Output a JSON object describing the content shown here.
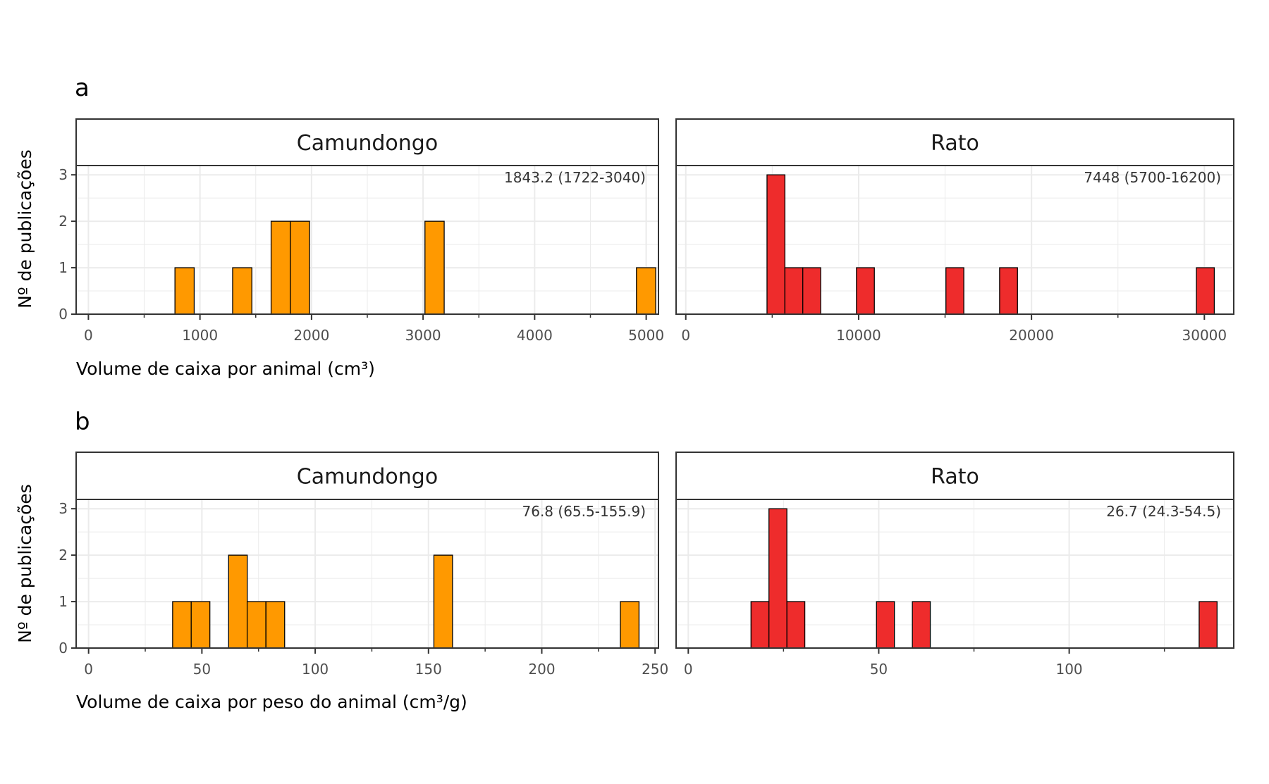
{
  "figure": {
    "panels": [
      {
        "letter": "a",
        "xlabel": "Volume de caixa por animal (cm³)",
        "ylabel": "Nº de publicações"
      },
      {
        "letter": "b",
        "xlabel": "Volume de caixa por peso do animal (cm³/g)",
        "ylabel": "Nº de publicações"
      }
    ],
    "colors": {
      "Camundongo": "#FF9900",
      "Rato": "#EE2C2C",
      "outline": "#000000",
      "grid": "#EBEBEB"
    }
  },
  "chart_data": [
    {
      "type": "bar",
      "panel": "a",
      "facet": "Camundongo",
      "annotation": "1843.2 (1722-3040)",
      "xlim": [
        -110,
        5110
      ],
      "ylim": [
        0,
        3.2
      ],
      "xticks": [
        0,
        1000,
        2000,
        3000,
        4000,
        5000
      ],
      "yticks": [
        0,
        1,
        2,
        3
      ],
      "binwidth": 172.4,
      "bins": [
        [
          862,
          1
        ],
        [
          1379,
          1
        ],
        [
          1724,
          2
        ],
        [
          1896,
          2
        ],
        [
          3103,
          2
        ],
        [
          4999,
          1
        ]
      ]
    },
    {
      "type": "bar",
      "panel": "a",
      "facet": "Rato",
      "annotation": "7448 (5700-16200)",
      "xlim": [
        -560,
        31700
      ],
      "ylim": [
        0,
        3.2
      ],
      "xticks": [
        0,
        10000,
        20000,
        30000
      ],
      "yticks": [
        0,
        1,
        2,
        3
      ],
      "binwidth": 1035,
      "bins": [
        [
          5217,
          3
        ],
        [
          6252,
          1
        ],
        [
          7287,
          1
        ],
        [
          10392,
          1
        ],
        [
          15567,
          1
        ],
        [
          18672,
          1
        ],
        [
          30057,
          1
        ]
      ]
    },
    {
      "type": "bar",
      "panel": "b",
      "facet": "Camundongo",
      "annotation": "76.8 (65.5-155.9)",
      "xlim": [
        -5.5,
        251.5
      ],
      "ylim": [
        0,
        3.2
      ],
      "xticks": [
        0,
        50,
        100,
        150,
        200,
        250
      ],
      "yticks": [
        0,
        1,
        2,
        3
      ],
      "binwidth": 8.235,
      "bins": [
        [
          41.2,
          1
        ],
        [
          49.4,
          1
        ],
        [
          65.9,
          2
        ],
        [
          74.1,
          1
        ],
        [
          82.4,
          1
        ],
        [
          156.5,
          2
        ],
        [
          238.8,
          1
        ]
      ]
    },
    {
      "type": "bar",
      "panel": "b",
      "facet": "Rato",
      "annotation": "26.7 (24.3-54.5)",
      "xlim": [
        -3.2,
        143.2
      ],
      "ylim": [
        0,
        3.2
      ],
      "xticks": [
        0,
        50,
        100
      ],
      "yticks": [
        0,
        1,
        2,
        3
      ],
      "binwidth": 4.706,
      "bins": [
        [
          18.82,
          1
        ],
        [
          23.53,
          3
        ],
        [
          28.24,
          1
        ],
        [
          51.76,
          1
        ],
        [
          61.18,
          1
        ],
        [
          136.47,
          1
        ]
      ]
    }
  ]
}
